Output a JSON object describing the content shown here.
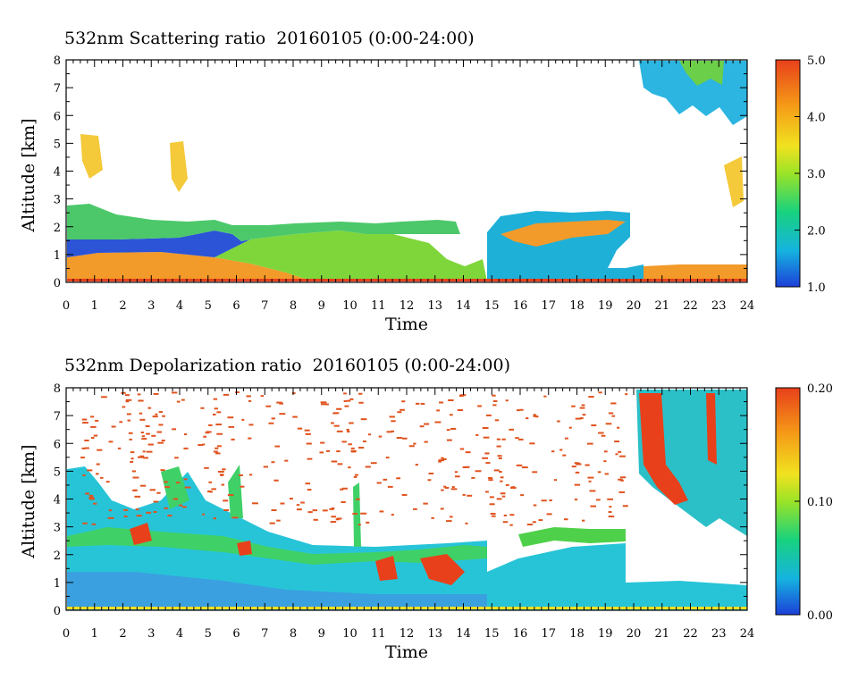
{
  "chart_data": [
    {
      "type": "heatmap",
      "title": "532nm Scattering ratio  20160105 (0:00-24:00)",
      "xlabel": "Time",
      "ylabel": "Altitude [km]",
      "xlim": [
        0,
        24
      ],
      "ylim": [
        0,
        8
      ],
      "x_ticks": [
        "0",
        "1",
        "2",
        "3",
        "4",
        "5",
        "6",
        "7",
        "8",
        "9",
        "10",
        "11",
        "12",
        "13",
        "14",
        "15",
        "16",
        "17",
        "18",
        "19",
        "20",
        "21",
        "22",
        "23",
        "24"
      ],
      "y_ticks": [
        "0",
        "1",
        "2",
        "3",
        "4",
        "5",
        "6",
        "7",
        "8"
      ],
      "colorbar": {
        "range": [
          1.0,
          5.0
        ],
        "tick_labels": [
          "5.0",
          "4.0",
          "3.0",
          "2.0",
          "1.0"
        ],
        "tick_values": [
          5.0,
          4.0,
          3.0,
          2.0,
          1.0
        ]
      },
      "colormap": [
        "#1c3fd8",
        "#15b4e0",
        "#18d27e",
        "#9be327",
        "#f1e21f",
        "#f59a17",
        "#e8401a"
      ]
    },
    {
      "type": "heatmap",
      "title": "532nm Depolarization ratio  20160105 (0:00-24:00)",
      "xlabel": "Time",
      "ylabel": "Altitude [km]",
      "xlim": [
        0,
        24
      ],
      "ylim": [
        0,
        8
      ],
      "x_ticks": [
        "0",
        "1",
        "2",
        "3",
        "4",
        "5",
        "6",
        "7",
        "8",
        "9",
        "10",
        "11",
        "12",
        "13",
        "14",
        "15",
        "16",
        "17",
        "18",
        "19",
        "20",
        "21",
        "22",
        "23",
        "24"
      ],
      "y_ticks": [
        "0",
        "1",
        "2",
        "3",
        "4",
        "5",
        "6",
        "7",
        "8"
      ],
      "colorbar": {
        "range": [
          0.0,
          0.2
        ],
        "tick_labels": [
          "0.20",
          "0.10",
          "0.00"
        ],
        "tick_values": [
          0.2,
          0.1,
          0.0
        ]
      },
      "colormap": [
        "#1c3fd8",
        "#15b4e0",
        "#18d27e",
        "#9be327",
        "#f1e21f",
        "#f59a17",
        "#e8401a"
      ]
    }
  ]
}
